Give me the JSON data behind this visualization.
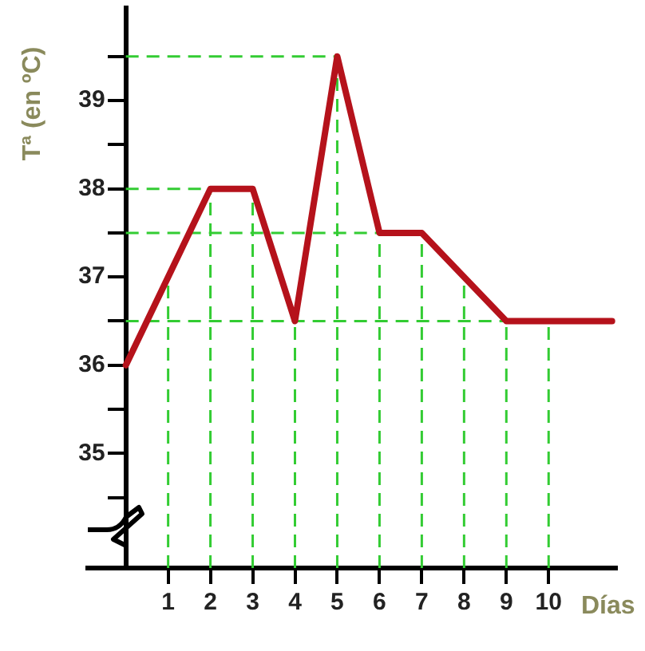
{
  "chart_data": {
    "type": "line",
    "xlabel": "Días",
    "ylabel": "Tª (en ºC)",
    "x": [
      0,
      1,
      2,
      3,
      4,
      5,
      6,
      7,
      8,
      9,
      10,
      11.5
    ],
    "series": [
      {
        "color": "#b5121b",
        "values": [
          36,
          37,
          38,
          38,
          36.5,
          39.5,
          37.5,
          37.5,
          37,
          36.5,
          36.5,
          36.5
        ]
      }
    ],
    "xlim": [
      -0.9,
      11.6
    ],
    "xticks": [
      1,
      2,
      3,
      4,
      5,
      6,
      7,
      8,
      9,
      10
    ],
    "ylim": [
      33.7,
      40.05
    ],
    "yticks": [
      {
        "value": 34.5,
        "label": null
      },
      35,
      {
        "value": 35.5,
        "label": null
      },
      36,
      {
        "value": 36.5,
        "label": null
      },
      37,
      {
        "value": 37.5,
        "label": null
      },
      38,
      {
        "value": 38.5,
        "label": null
      },
      39,
      {
        "value": 39.5,
        "label": null
      }
    ],
    "ref_lines": [
      {
        "axis": "y",
        "value": 39.5,
        "color": "#33cc33",
        "line_style": "dashed"
      },
      {
        "axis": "y",
        "value": 38,
        "color": "#33cc33",
        "line_style": "dashed"
      },
      {
        "axis": "y",
        "value": 37.5,
        "color": "#33cc33",
        "line_style": "dashed"
      },
      {
        "axis": "y",
        "value": 36.5,
        "color": "#33cc33",
        "line_style": "dashed"
      },
      {
        "axis": "x",
        "value": 1,
        "color": "#33cc33",
        "line_style": "dashed"
      },
      {
        "axis": "x",
        "value": 2,
        "color": "#33cc33",
        "line_style": "dashed"
      },
      {
        "axis": "x",
        "value": 3,
        "color": "#33cc33",
        "line_style": "dashed"
      },
      {
        "axis": "x",
        "value": 4,
        "color": "#33cc33",
        "line_style": "dashed"
      },
      {
        "axis": "x",
        "value": 5,
        "color": "#33cc33",
        "line_style": "dashed"
      },
      {
        "axis": "x",
        "value": 6,
        "color": "#33cc33",
        "line_style": "dashed"
      },
      {
        "axis": "x",
        "value": 7,
        "color": "#33cc33",
        "line_style": "dashed"
      },
      {
        "axis": "x",
        "value": 8,
        "color": "#33cc33",
        "line_style": "dashed"
      },
      {
        "axis": "x",
        "value": 9,
        "color": "#33cc33",
        "line_style": "dashed"
      },
      {
        "axis": "x",
        "value": 10,
        "color": "#33cc33",
        "line_style": "dashed"
      }
    ],
    "grid": false,
    "legend": false,
    "marker": "none",
    "line_style": "solid"
  }
}
